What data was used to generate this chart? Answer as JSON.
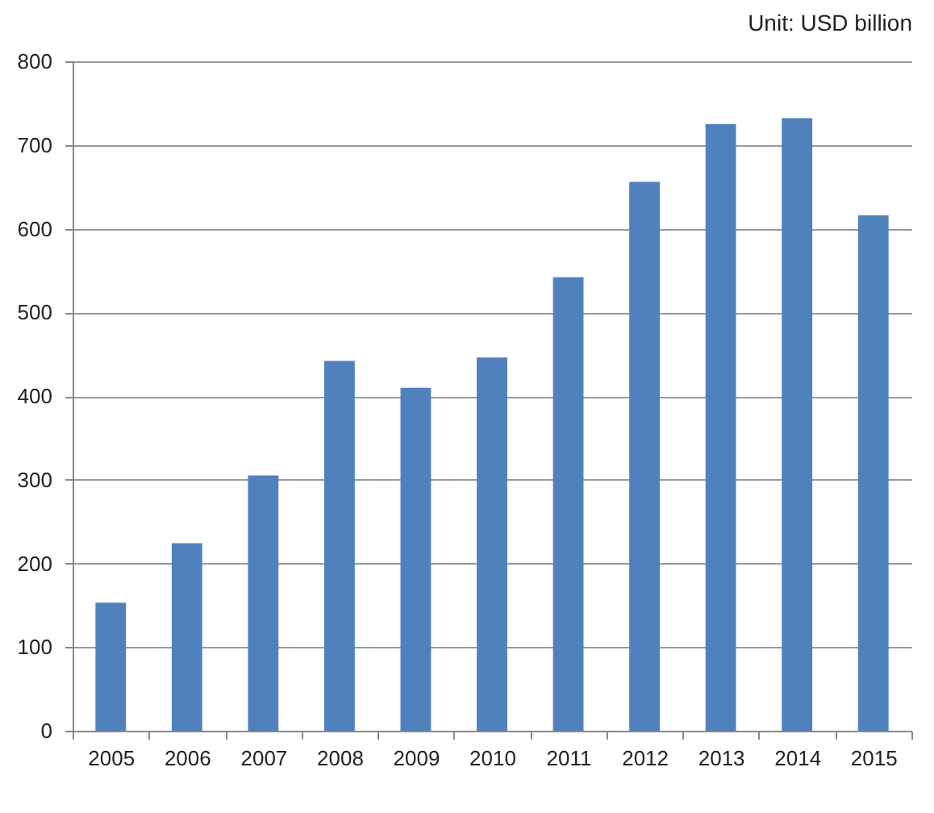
{
  "chart_data": {
    "type": "bar",
    "annotations": [
      "Unit: USD billion"
    ],
    "categories": [
      "2005",
      "2006",
      "2007",
      "2008",
      "2009",
      "2010",
      "2011",
      "2012",
      "2013",
      "2014",
      "2015"
    ],
    "values": [
      153,
      224,
      305,
      442,
      410,
      446,
      542,
      656,
      725,
      732,
      616
    ],
    "color": "#4f81bd",
    "ylim": [
      0,
      800
    ],
    "yticks": [
      0,
      100,
      200,
      300,
      400,
      500,
      600,
      700,
      800
    ],
    "grid": "y"
  }
}
